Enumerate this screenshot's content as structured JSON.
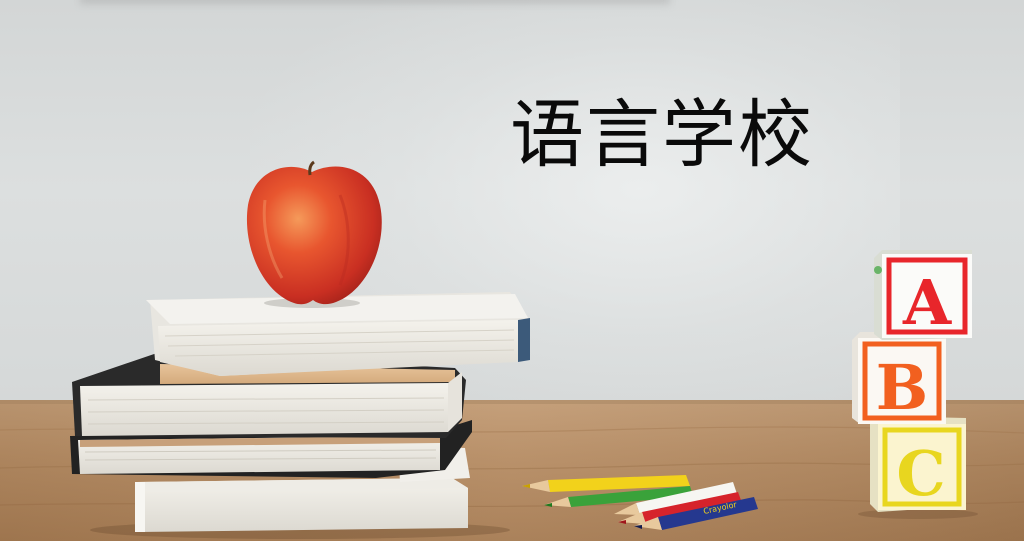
{
  "headline": {
    "text": "语言学校"
  },
  "blocks": [
    {
      "letter": "A",
      "face_color": "#ffffff",
      "letter_color": "#e8262b",
      "border_color": "#e8262b"
    },
    {
      "letter": "B",
      "face_color": "#ffffff",
      "letter_color": "#f2601f",
      "border_color": "#f2601f"
    },
    {
      "letter": "C",
      "face_color": "#fbf3c9",
      "letter_color": "#e8d61f",
      "border_color": "#e8d61f"
    }
  ],
  "pencil_brand": {
    "text": "Crayolor"
  },
  "colors": {
    "wall": "#d9dcdc",
    "desk": "#b8916a",
    "apple": "#e2452c"
  }
}
